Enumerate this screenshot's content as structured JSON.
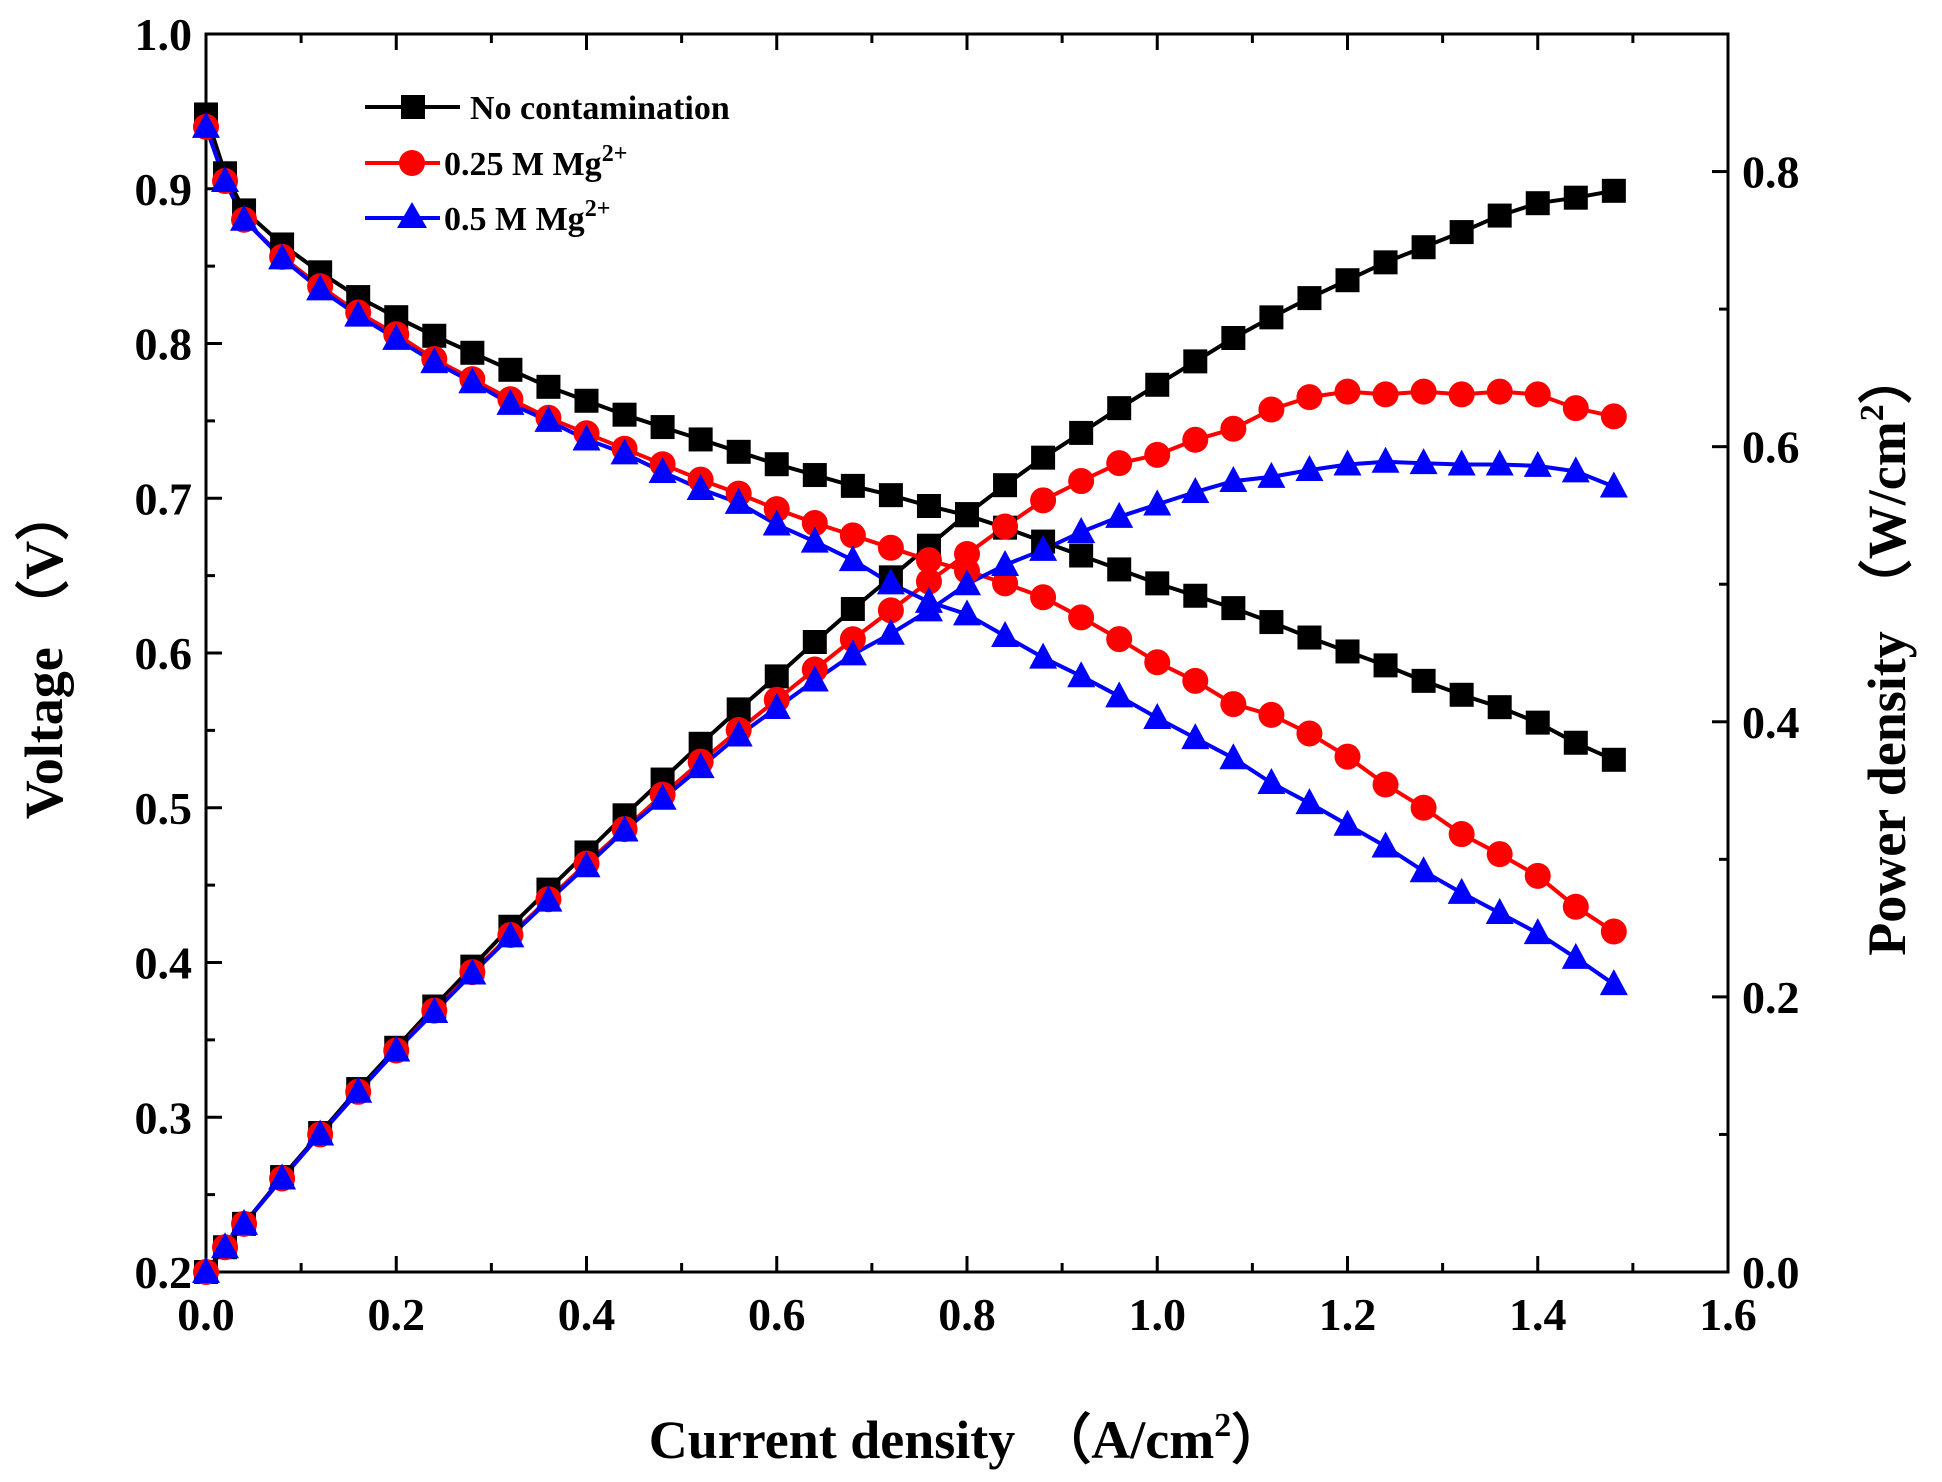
{
  "chart_data": {
    "type": "line",
    "title": "",
    "xlabel": "Current density",
    "xlabel_unit": "（A/cm",
    "xlabel_unit_sup": "2",
    "xlabel_unit_close": "）",
    "ylabel_left": "Voltage （V）",
    "ylabel_right": "Power density",
    "ylabel_right_unit": "（W/cm",
    "ylabel_right_unit_sup": "2",
    "ylabel_right_unit_close": "）",
    "xlim": [
      0.0,
      1.6
    ],
    "ylim_left": [
      0.2,
      1.0
    ],
    "ylim_right": [
      0.0,
      0.9
    ],
    "x_ticks": [
      "0.0",
      "0.2",
      "0.4",
      "0.6",
      "0.8",
      "1.0",
      "1.2",
      "1.4",
      "1.6"
    ],
    "y_left_ticks": [
      "0.2",
      "0.3",
      "0.4",
      "0.5",
      "0.6",
      "0.7",
      "0.8",
      "0.9",
      "1.0"
    ],
    "y_right_ticks": [
      "0.0",
      "0.2",
      "0.4",
      "0.6",
      "0.8"
    ],
    "legend": [
      {
        "name": "No contamination",
        "sup": "",
        "color": "#000000",
        "marker": "square"
      },
      {
        "name": "0.25 M Mg",
        "sup": "2+",
        "color": "#ff0000",
        "marker": "circle"
      },
      {
        "name": "0.5 M Mg",
        "sup": "2+",
        "color": "#0000ff",
        "marker": "triangle"
      }
    ],
    "x": [
      0.0,
      0.02,
      0.04,
      0.08,
      0.12,
      0.16,
      0.2,
      0.24,
      0.28,
      0.32,
      0.36,
      0.4,
      0.44,
      0.48,
      0.52,
      0.56,
      0.6,
      0.64,
      0.68,
      0.72,
      0.76,
      0.8,
      0.84,
      0.88,
      0.92,
      0.96,
      1.0,
      1.04,
      1.08,
      1.12,
      1.16,
      1.2,
      1.24,
      1.28,
      1.32,
      1.36,
      1.4,
      1.44,
      1.48
    ],
    "series": [
      {
        "name": "No contamination",
        "color": "#000000",
        "marker": "square",
        "voltage": [
          0.948,
          0.91,
          0.886,
          0.864,
          0.846,
          0.83,
          0.817,
          0.805,
          0.794,
          0.783,
          0.772,
          0.763,
          0.754,
          0.746,
          0.738,
          0.73,
          0.722,
          0.715,
          0.708,
          0.702,
          0.695,
          0.689,
          0.681,
          0.672,
          0.663,
          0.654,
          0.645,
          0.637,
          0.629,
          0.62,
          0.61,
          0.601,
          0.592,
          0.582,
          0.573,
          0.565,
          0.555,
          0.542,
          0.531
        ],
        "power": [
          0.0,
          0.018,
          0.035,
          0.069,
          0.101,
          0.133,
          0.163,
          0.193,
          0.222,
          0.251,
          0.278,
          0.305,
          0.332,
          0.358,
          0.384,
          0.409,
          0.433,
          0.458,
          0.482,
          0.505,
          0.528,
          0.551,
          0.572,
          0.592,
          0.61,
          0.628,
          0.645,
          0.662,
          0.679,
          0.694,
          0.708,
          0.721,
          0.734,
          0.745,
          0.756,
          0.768,
          0.777,
          0.781,
          0.786
        ]
      },
      {
        "name": "0.25 M Mg2+",
        "color": "#ff0000",
        "marker": "circle",
        "voltage": [
          0.94,
          0.905,
          0.88,
          0.856,
          0.837,
          0.82,
          0.806,
          0.79,
          0.777,
          0.764,
          0.752,
          0.742,
          0.732,
          0.722,
          0.712,
          0.703,
          0.693,
          0.684,
          0.676,
          0.668,
          0.66,
          0.653,
          0.645,
          0.636,
          0.623,
          0.609,
          0.594,
          0.582,
          0.567,
          0.56,
          0.548,
          0.533,
          0.515,
          0.5,
          0.483,
          0.47,
          0.456,
          0.436,
          0.42
        ],
        "power": [
          0.0,
          0.018,
          0.035,
          0.068,
          0.1,
          0.131,
          0.161,
          0.19,
          0.218,
          0.245,
          0.271,
          0.297,
          0.322,
          0.347,
          0.371,
          0.394,
          0.416,
          0.438,
          0.46,
          0.481,
          0.502,
          0.522,
          0.542,
          0.561,
          0.575,
          0.588,
          0.594,
          0.605,
          0.613,
          0.627,
          0.636,
          0.64,
          0.638,
          0.64,
          0.638,
          0.64,
          0.638,
          0.628,
          0.622
        ]
      },
      {
        "name": "0.5 M Mg2+",
        "color": "#0000ff",
        "marker": "triangle",
        "voltage": [
          0.94,
          0.905,
          0.88,
          0.855,
          0.835,
          0.818,
          0.803,
          0.788,
          0.775,
          0.761,
          0.75,
          0.738,
          0.729,
          0.717,
          0.706,
          0.697,
          0.683,
          0.672,
          0.66,
          0.645,
          0.633,
          0.625,
          0.611,
          0.597,
          0.585,
          0.572,
          0.558,
          0.545,
          0.532,
          0.516,
          0.503,
          0.489,
          0.475,
          0.459,
          0.445,
          0.432,
          0.419,
          0.403,
          0.386
        ],
        "power": [
          0.0,
          0.018,
          0.035,
          0.068,
          0.1,
          0.131,
          0.161,
          0.189,
          0.217,
          0.244,
          0.27,
          0.295,
          0.321,
          0.344,
          0.367,
          0.39,
          0.41,
          0.43,
          0.449,
          0.464,
          0.481,
          0.5,
          0.514,
          0.525,
          0.538,
          0.549,
          0.558,
          0.567,
          0.575,
          0.578,
          0.583,
          0.587,
          0.589,
          0.588,
          0.587,
          0.587,
          0.586,
          0.582,
          0.571
        ]
      }
    ]
  }
}
